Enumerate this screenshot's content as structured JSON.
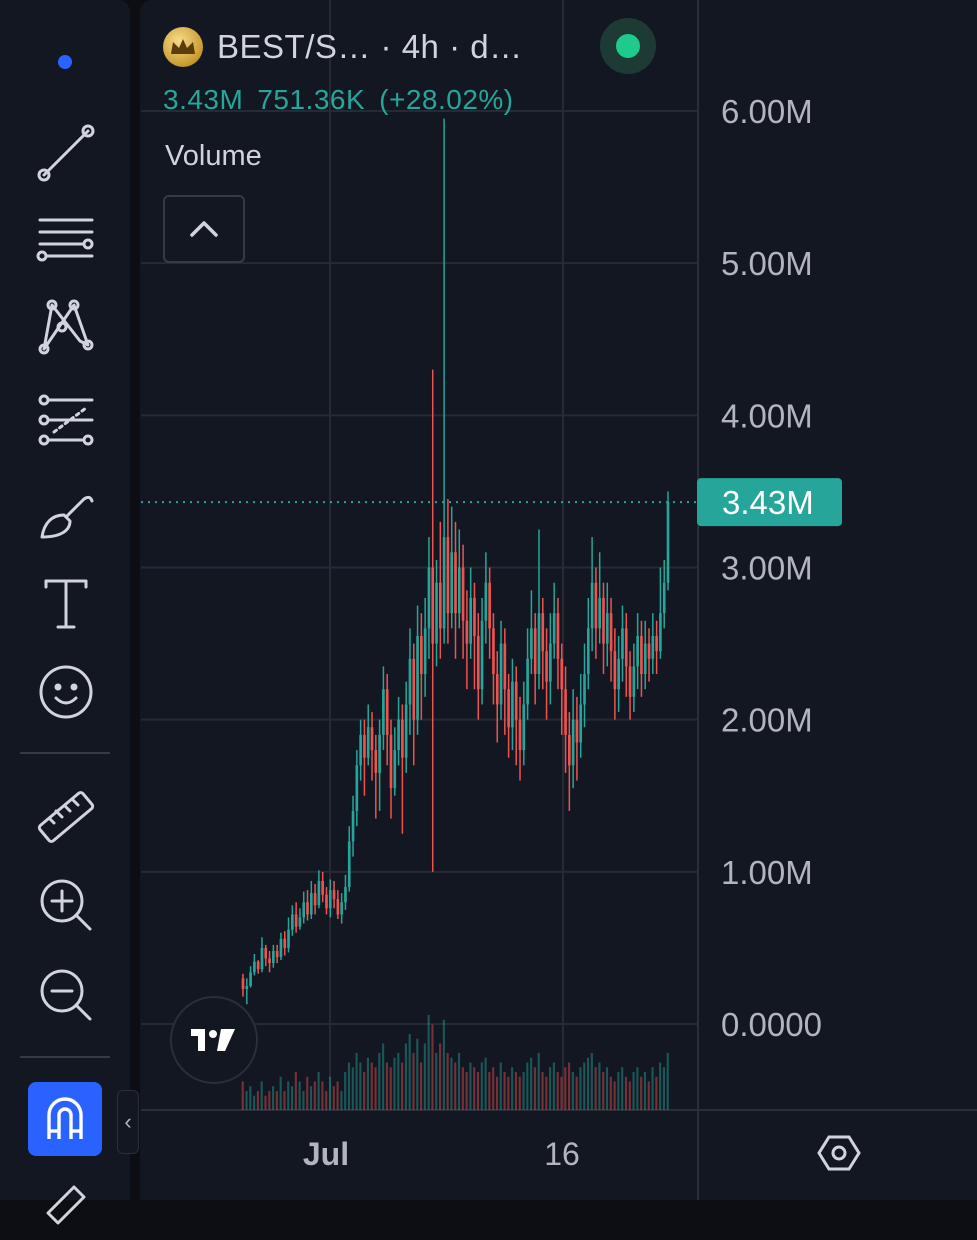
{
  "header": {
    "title": "BEST/S…   · 4h · d…",
    "logo_icon": "crown-coin-icon",
    "status_color": "#1ecb8d"
  },
  "values": {
    "last": "3.43M",
    "change": "751.36K",
    "change_pct": "(+28.02%)"
  },
  "study": {
    "label": "Volume",
    "toggle_icon": "chevron-up-icon"
  },
  "price_axis": {
    "labels": [
      "6.00M",
      "5.00M",
      "4.00M",
      "3.00M",
      "2.00M",
      "1.00M",
      "0.0000"
    ],
    "current_label": "3.43M"
  },
  "time_axis": {
    "labels": [
      "Jul",
      "16"
    ]
  },
  "toolbar": {
    "tools": [
      "trend-line-icon",
      "fib-retracement-icon",
      "pattern-icon",
      "forecast-icon",
      "brush-icon",
      "text-icon",
      "emoji-icon",
      "ruler-icon",
      "zoom-in-icon",
      "zoom-out-icon",
      "magnet-icon",
      "pencil-icon"
    ]
  },
  "colors": {
    "up": "#26a69a",
    "down": "#ef5350",
    "accent": "#2962ff"
  },
  "chart_data": {
    "type": "candlestick",
    "interval": "4h",
    "ylim": [
      0,
      6000000
    ],
    "last_value": 3430000,
    "candles": [
      [
        300000,
        230000,
        330000,
        180000
      ],
      [
        230000,
        250000,
        300000,
        130000
      ],
      [
        250000,
        340000,
        380000,
        240000
      ],
      [
        340000,
        410000,
        460000,
        320000
      ],
      [
        410000,
        360000,
        420000,
        330000
      ],
      [
        360000,
        500000,
        570000,
        340000
      ],
      [
        500000,
        430000,
        520000,
        380000
      ],
      [
        430000,
        400000,
        480000,
        340000
      ],
      [
        400000,
        480000,
        520000,
        370000
      ],
      [
        480000,
        440000,
        520000,
        400000
      ],
      [
        440000,
        560000,
        600000,
        420000
      ],
      [
        560000,
        500000,
        610000,
        450000
      ],
      [
        500000,
        620000,
        700000,
        470000
      ],
      [
        620000,
        720000,
        780000,
        580000
      ],
      [
        720000,
        640000,
        800000,
        600000
      ],
      [
        640000,
        700000,
        760000,
        620000
      ],
      [
        700000,
        800000,
        870000,
        660000
      ],
      [
        800000,
        720000,
        880000,
        680000
      ],
      [
        720000,
        860000,
        940000,
        690000
      ],
      [
        860000,
        780000,
        920000,
        720000
      ],
      [
        780000,
        940000,
        1010000,
        760000
      ],
      [
        940000,
        850000,
        1000000,
        800000
      ],
      [
        850000,
        760000,
        900000,
        720000
      ],
      [
        760000,
        880000,
        950000,
        700000
      ],
      [
        880000,
        820000,
        940000,
        760000
      ],
      [
        820000,
        720000,
        880000,
        690000
      ],
      [
        720000,
        800000,
        860000,
        660000
      ],
      [
        800000,
        900000,
        980000,
        750000
      ],
      [
        900000,
        1200000,
        1300000,
        870000
      ],
      [
        1200000,
        1400000,
        1500000,
        1100000
      ],
      [
        1400000,
        1700000,
        1800000,
        1300000
      ],
      [
        1700000,
        1900000,
        2000000,
        1600000
      ],
      [
        1900000,
        1750000,
        2000000,
        1500000
      ],
      [
        1750000,
        1950000,
        2100000,
        1700000
      ],
      [
        1950000,
        1800000,
        2050000,
        1600000
      ],
      [
        1800000,
        1650000,
        1900000,
        1350000
      ],
      [
        1650000,
        1900000,
        2000000,
        1400000
      ],
      [
        1900000,
        2200000,
        2350000,
        1800000
      ],
      [
        2200000,
        1900000,
        2300000,
        1700000
      ],
      [
        1900000,
        1550000,
        2000000,
        1350000
      ],
      [
        1550000,
        1800000,
        1950000,
        1500000
      ],
      [
        1800000,
        2000000,
        2150000,
        1700000
      ],
      [
        2000000,
        1750000,
        2100000,
        1250000
      ],
      [
        1750000,
        2100000,
        2250000,
        1650000
      ],
      [
        2100000,
        2400000,
        2600000,
        1900000
      ],
      [
        2400000,
        2000000,
        2500000,
        1700000
      ],
      [
        2000000,
        2550000,
        2750000,
        1900000
      ],
      [
        2550000,
        2300000,
        2700000,
        2000000
      ],
      [
        2300000,
        2600000,
        2800000,
        2150000
      ],
      [
        2600000,
        3000000,
        3200000,
        2400000
      ],
      [
        3000000,
        2500000,
        4300000,
        1000000
      ],
      [
        2500000,
        2900000,
        3050000,
        2350000
      ],
      [
        2900000,
        2600000,
        3300000,
        2400000
      ],
      [
        2600000,
        3200000,
        5950000,
        2500000
      ],
      [
        3200000,
        2700000,
        3450000,
        2500000
      ],
      [
        2700000,
        3100000,
        3400000,
        2600000
      ],
      [
        3100000,
        2700000,
        3300000,
        2400000
      ],
      [
        2700000,
        3000000,
        3250000,
        2600000
      ],
      [
        3000000,
        2650000,
        3150000,
        2400000
      ],
      [
        2650000,
        2500000,
        2850000,
        2200000
      ],
      [
        2500000,
        2800000,
        3000000,
        2400000
      ],
      [
        2800000,
        2550000,
        2900000,
        2200000
      ],
      [
        2550000,
        2200000,
        2700000,
        2000000
      ],
      [
        2200000,
        2650000,
        2800000,
        2100000
      ],
      [
        2650000,
        2900000,
        3100000,
        2500000
      ],
      [
        2900000,
        2600000,
        3000000,
        2400000
      ],
      [
        2600000,
        2300000,
        2700000,
        2100000
      ],
      [
        2300000,
        2100000,
        2450000,
        1850000
      ],
      [
        2100000,
        2500000,
        2650000,
        2000000
      ],
      [
        2500000,
        2200000,
        2600000,
        1900000
      ],
      [
        2200000,
        1950000,
        2300000,
        1750000
      ],
      [
        1950000,
        2250000,
        2400000,
        1800000
      ],
      [
        2250000,
        2000000,
        2350000,
        1700000
      ],
      [
        2000000,
        1800000,
        2150000,
        1600000
      ],
      [
        1800000,
        2100000,
        2250000,
        1700000
      ],
      [
        2100000,
        2400000,
        2600000,
        2000000
      ],
      [
        2400000,
        2600000,
        2850000,
        2300000
      ],
      [
        2600000,
        2300000,
        2700000,
        2100000
      ],
      [
        2300000,
        2700000,
        3250000,
        2200000
      ],
      [
        2700000,
        2450000,
        2800000,
        2200000
      ],
      [
        2450000,
        2250000,
        2600000,
        2000000
      ],
      [
        2250000,
        2500000,
        2700000,
        2100000
      ],
      [
        2500000,
        2700000,
        2900000,
        2400000
      ],
      [
        2700000,
        2400000,
        2800000,
        2200000
      ],
      [
        2400000,
        2200000,
        2500000,
        1900000
      ],
      [
        2200000,
        1900000,
        2350000,
        1650000
      ],
      [
        1900000,
        1700000,
        2050000,
        1400000
      ],
      [
        1700000,
        2000000,
        2200000,
        1550000
      ],
      [
        2000000,
        1850000,
        2150000,
        1600000
      ],
      [
        1850000,
        2100000,
        2300000,
        1750000
      ],
      [
        2100000,
        2300000,
        2500000,
        1950000
      ],
      [
        2300000,
        2600000,
        2800000,
        2200000
      ],
      [
        2600000,
        2900000,
        3200000,
        2450000
      ],
      [
        2900000,
        2600000,
        3000000,
        2400000
      ],
      [
        2600000,
        2800000,
        3100000,
        2500000
      ],
      [
        2800000,
        2500000,
        2900000,
        2300000
      ],
      [
        2500000,
        2700000,
        2900000,
        2350000
      ],
      [
        2700000,
        2450000,
        2800000,
        2250000
      ],
      [
        2450000,
        2200000,
        2600000,
        2000000
      ],
      [
        2200000,
        2400000,
        2550000,
        2050000
      ],
      [
        2400000,
        2600000,
        2750000,
        2250000
      ],
      [
        2600000,
        2350000,
        2700000,
        2150000
      ],
      [
        2350000,
        2150000,
        2450000,
        2000000
      ],
      [
        2150000,
        2350000,
        2500000,
        2050000
      ],
      [
        2350000,
        2550000,
        2700000,
        2200000
      ],
      [
        2550000,
        2300000,
        2650000,
        2150000
      ],
      [
        2300000,
        2500000,
        2650000,
        2200000
      ],
      [
        2500000,
        2400000,
        2600000,
        2250000
      ],
      [
        2400000,
        2550000,
        2700000,
        2300000
      ],
      [
        2550000,
        2450000,
        2650000,
        2300000
      ],
      [
        2450000,
        2700000,
        3000000,
        2400000
      ],
      [
        2700000,
        2900000,
        3050000,
        2600000
      ],
      [
        2900000,
        3430000,
        3500000,
        2850000
      ]
    ],
    "volume_bars_note": "relative bar heights",
    "volumes": [
      0.3,
      0.2,
      0.25,
      0.15,
      0.2,
      0.3,
      0.15,
      0.2,
      0.25,
      0.2,
      0.35,
      0.2,
      0.3,
      0.25,
      0.4,
      0.3,
      0.2,
      0.35,
      0.25,
      0.3,
      0.4,
      0.3,
      0.2,
      0.35,
      0.25,
      0.3,
      0.2,
      0.4,
      0.5,
      0.45,
      0.6,
      0.5,
      0.4,
      0.55,
      0.5,
      0.45,
      0.6,
      0.7,
      0.5,
      0.45,
      0.55,
      0.6,
      0.5,
      0.7,
      0.8,
      0.6,
      0.75,
      0.5,
      0.7,
      1.0,
      0.9,
      0.6,
      0.7,
      0.95,
      0.6,
      0.55,
      0.5,
      0.6,
      0.45,
      0.4,
      0.5,
      0.45,
      0.4,
      0.5,
      0.55,
      0.4,
      0.45,
      0.35,
      0.5,
      0.4,
      0.35,
      0.45,
      0.4,
      0.35,
      0.4,
      0.5,
      0.55,
      0.45,
      0.6,
      0.4,
      0.35,
      0.45,
      0.5,
      0.4,
      0.35,
      0.45,
      0.5,
      0.4,
      0.35,
      0.45,
      0.5,
      0.55,
      0.6,
      0.45,
      0.5,
      0.4,
      0.45,
      0.35,
      0.3,
      0.4,
      0.45,
      0.35,
      0.3,
      0.4,
      0.45,
      0.35,
      0.4,
      0.3,
      0.45,
      0.35,
      0.5,
      0.45,
      0.6
    ]
  }
}
